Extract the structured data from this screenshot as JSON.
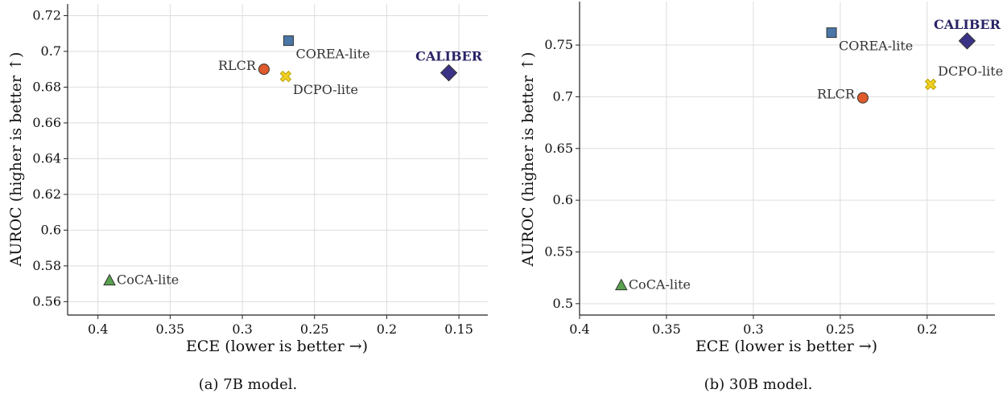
{
  "chart_data": [
    {
      "type": "scatter",
      "caption": "(a) 7B model.",
      "xlabel": "ECE  (lower is better →)",
      "ylabel": "AUROC  (higher is better ↑)",
      "xlim": [
        0.421,
        0.13
      ],
      "ylim": [
        0.5525,
        0.7265
      ],
      "x_inverted": true,
      "grid": true,
      "xticks": [
        0.4,
        0.35,
        0.3,
        0.25,
        0.2,
        0.15
      ],
      "xtick_labels": [
        "0.4",
        "0.35",
        "0.3",
        "0.25",
        "0.2",
        "0.15"
      ],
      "yticks": [
        0.56,
        0.58,
        0.6,
        0.62,
        0.64,
        0.66,
        0.68,
        0.7,
        0.72
      ],
      "ytick_labels": [
        "0.56",
        "0.58",
        "0.6",
        "0.62",
        "0.64",
        "0.66",
        "0.68",
        "0.7",
        "0.72"
      ],
      "points": [
        {
          "name": "COREA-lite",
          "x": 0.268,
          "y": 0.706,
          "marker": "square",
          "color": "#4a77a8",
          "label_pos": "below-right"
        },
        {
          "name": "RLCR",
          "x": 0.285,
          "y": 0.69,
          "marker": "circle",
          "color": "#e05a2b",
          "label_pos": "left"
        },
        {
          "name": "DCPO-lite",
          "x": 0.27,
          "y": 0.686,
          "marker": "cross",
          "color": "#f2d024",
          "label_pos": "below-right"
        },
        {
          "name": "CALIBER",
          "x": 0.157,
          "y": 0.688,
          "marker": "diamond",
          "color": "#3b3286",
          "label_pos": "above",
          "bold": true
        },
        {
          "name": "CoCA-lite",
          "x": 0.392,
          "y": 0.572,
          "marker": "triangle",
          "color": "#58a14e",
          "label_pos": "right"
        }
      ]
    },
    {
      "type": "scatter",
      "caption": "(b) 30B model.",
      "xlabel": "ECE  (lower is better →)",
      "ylabel": "AUROC  (higher is better ↑)",
      "xlim": [
        0.4,
        0.161
      ],
      "ylim": [
        0.489,
        0.792
      ],
      "x_inverted": true,
      "grid": true,
      "xticks": [
        0.4,
        0.35,
        0.3,
        0.25,
        0.2
      ],
      "xtick_labels": [
        "0.4",
        "0.35",
        "0.3",
        "0.25",
        "0.2"
      ],
      "yticks": [
        0.5,
        0.55,
        0.6,
        0.65,
        0.7,
        0.75
      ],
      "ytick_labels": [
        "0.5",
        "0.55",
        "0.6",
        "0.65",
        "0.7",
        "0.75"
      ],
      "points": [
        {
          "name": "COREA-lite",
          "x": 0.255,
          "y": 0.762,
          "marker": "square",
          "color": "#4a77a8",
          "label_pos": "below-right"
        },
        {
          "name": "CALIBER",
          "x": 0.177,
          "y": 0.754,
          "marker": "diamond",
          "color": "#3b3286",
          "label_pos": "above",
          "bold": true
        },
        {
          "name": "DCPO-lite",
          "x": 0.198,
          "y": 0.712,
          "marker": "cross",
          "color": "#f2d024",
          "label_pos": "above-right"
        },
        {
          "name": "RLCR",
          "x": 0.237,
          "y": 0.699,
          "marker": "circle",
          "color": "#e05a2b",
          "label_pos": "left"
        },
        {
          "name": "CoCA-lite",
          "x": 0.376,
          "y": 0.518,
          "marker": "triangle",
          "color": "#58a14e",
          "label_pos": "right"
        }
      ]
    }
  ]
}
